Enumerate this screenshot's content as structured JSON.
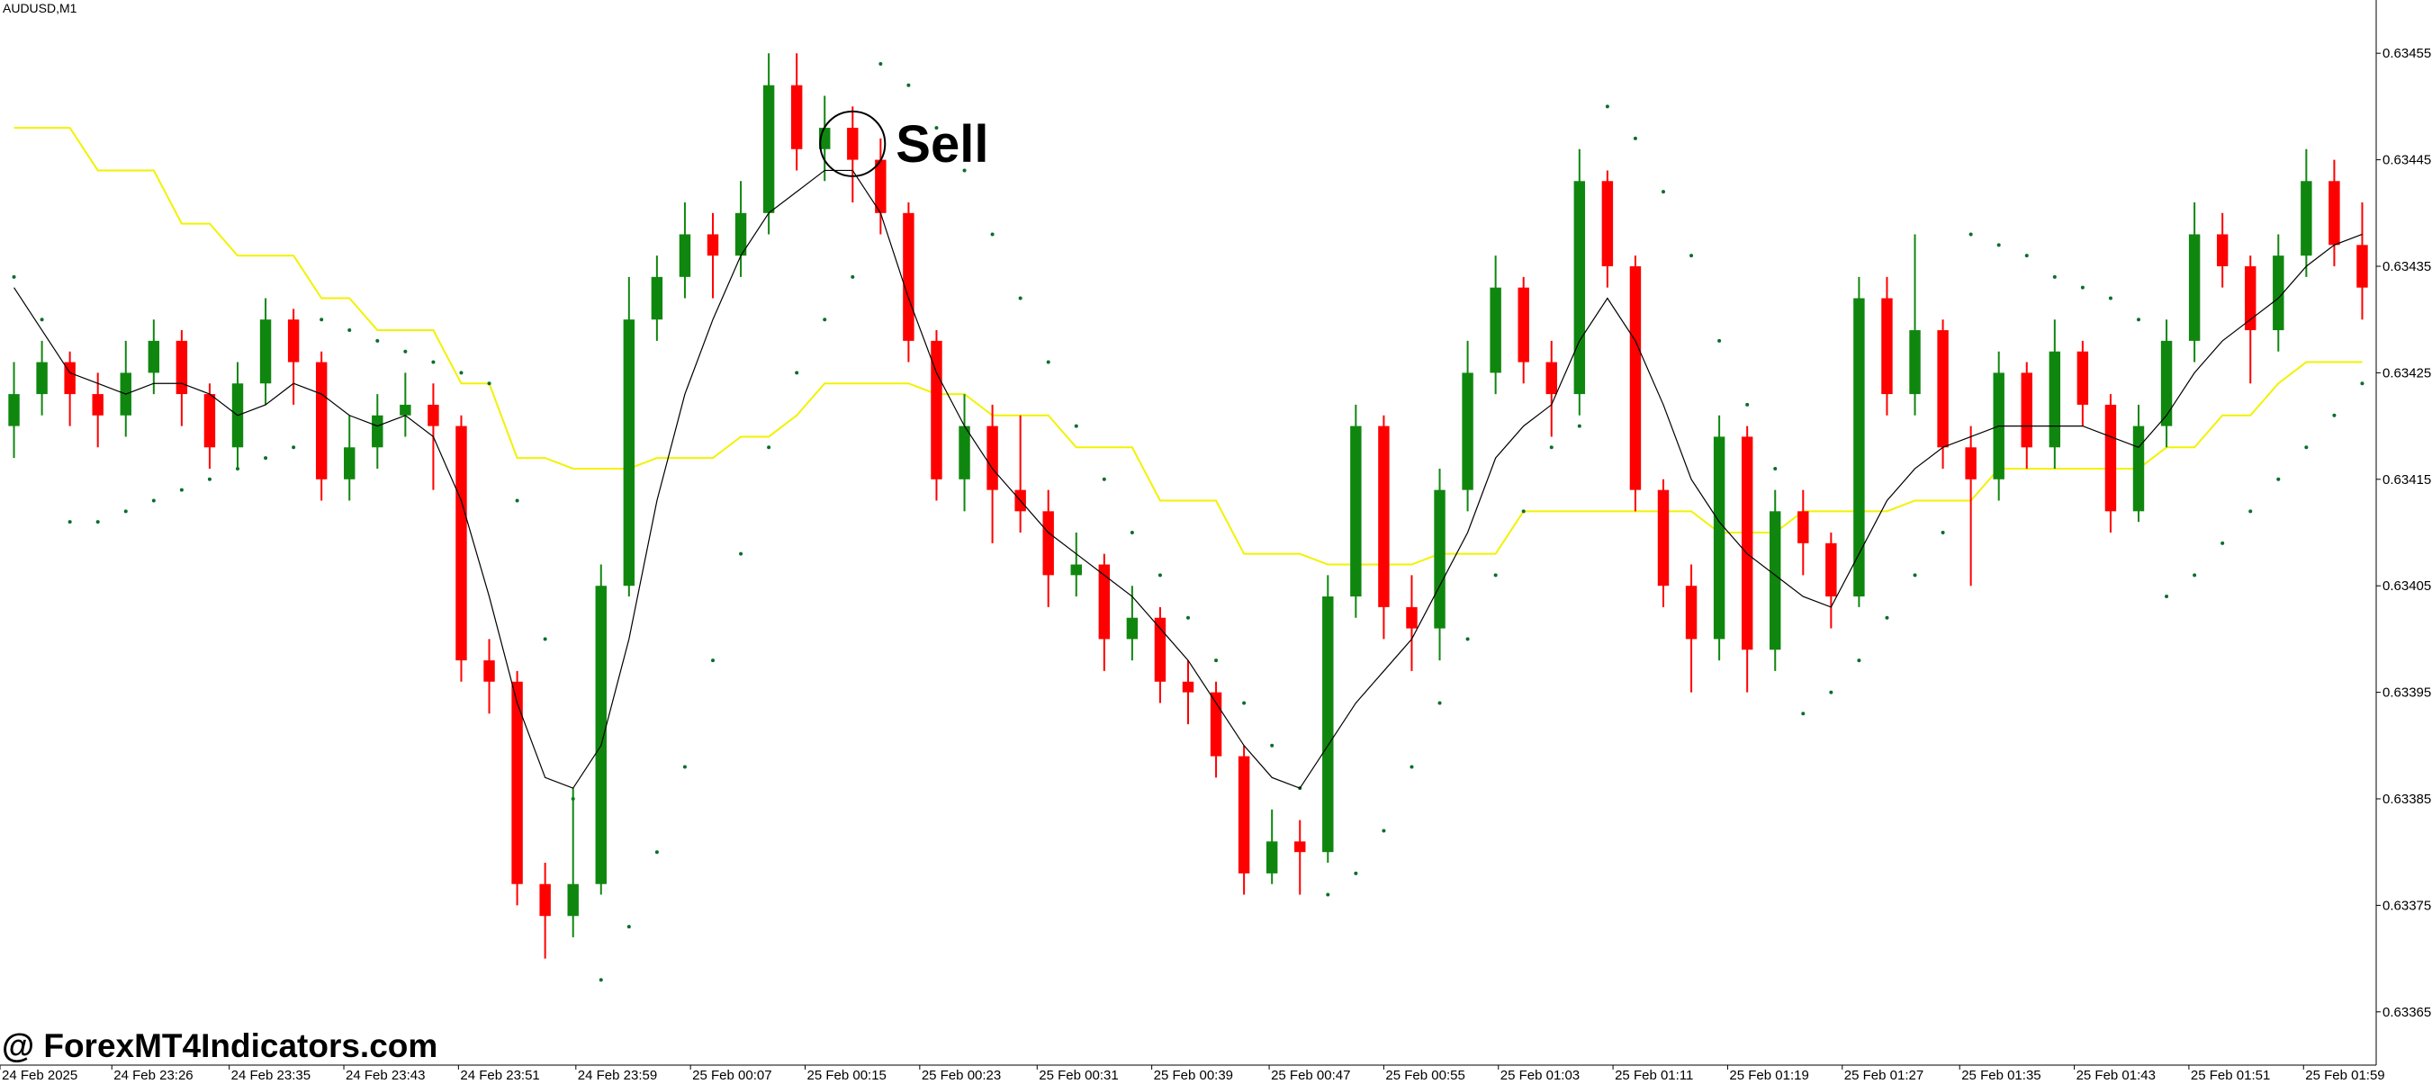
{
  "chart_data": {
    "type": "candlestick",
    "symbol": "AUDUSD,M1",
    "watermark": "@ ForexMT4Indicators.com",
    "up_color": "#0f870f",
    "down_color": "#ff0000",
    "ylim": [
      0.6336,
      0.6346
    ],
    "yticks": [
      0.63455,
      0.63445,
      0.63435,
      0.63425,
      0.63415,
      0.63405,
      0.63395,
      0.63385,
      0.63375,
      0.63365
    ],
    "xticks": [
      {
        "value": -0.5,
        "label": "24 Feb 2025"
      },
      {
        "value": 3.5,
        "label": "24 Feb 23:26"
      },
      {
        "value": 7.7,
        "label": "24 Feb 23:35"
      },
      {
        "value": 11.8,
        "label": "24 Feb 23:43"
      },
      {
        "value": 15.9,
        "label": "24 Feb 23:51"
      },
      {
        "value": 20.1,
        "label": "24 Feb 23:59"
      },
      {
        "value": 24.2,
        "label": "25 Feb 00:07"
      },
      {
        "value": 28.3,
        "label": "25 Feb 00:15"
      },
      {
        "value": 32.4,
        "label": "25 Feb 00:23"
      },
      {
        "value": 36.6,
        "label": "25 Feb 00:31"
      },
      {
        "value": 40.7,
        "label": "25 Feb 00:39"
      },
      {
        "value": 44.9,
        "label": "25 Feb 00:47"
      },
      {
        "value": 49,
        "label": "25 Feb 00:55"
      },
      {
        "value": 53.1,
        "label": "25 Feb 01:03"
      },
      {
        "value": 57.2,
        "label": "25 Feb 01:11"
      },
      {
        "value": 61.3,
        "label": "25 Feb 01:19"
      },
      {
        "value": 65.4,
        "label": "25 Feb 01:27"
      },
      {
        "value": 69.6,
        "label": "25 Feb 01:35"
      },
      {
        "value": 73.7,
        "label": "25 Feb 01:43"
      },
      {
        "value": 77.8,
        "label": "25 Feb 01:51"
      },
      {
        "value": 81.9,
        "label": "25 Feb 01:59"
      }
    ],
    "candles": {
      "open": [
        0.6342,
        0.63423,
        0.63426,
        0.63423,
        0.63421,
        0.63425,
        0.63428,
        0.63423,
        0.63418,
        0.63424,
        0.6343,
        0.63426,
        0.63415,
        0.63418,
        0.63421,
        0.63422,
        0.6342,
        0.63398,
        0.63396,
        0.63377,
        0.63374,
        0.63377,
        0.63405,
        0.6343,
        0.63434,
        0.63438,
        0.63436,
        0.6344,
        0.63452,
        0.63446,
        0.63448,
        0.63445,
        0.6344,
        0.63428,
        0.63415,
        0.6342,
        0.63414,
        0.63412,
        0.63406,
        0.63407,
        0.634,
        0.63402,
        0.63396,
        0.63395,
        0.63389,
        0.63378,
        0.63381,
        0.6338,
        0.63404,
        0.6342,
        0.63403,
        0.63401,
        0.63414,
        0.63425,
        0.63433,
        0.63426,
        0.63423,
        0.63443,
        0.63435,
        0.63414,
        0.63405,
        0.634,
        0.63419,
        0.63399,
        0.63412,
        0.63409,
        0.63404,
        0.63432,
        0.63423,
        0.63429,
        0.63418,
        0.63415,
        0.63425,
        0.63418,
        0.63427,
        0.63422,
        0.63412,
        0.6342,
        0.63428,
        0.63438,
        0.63435,
        0.63429,
        0.63436,
        0.63443,
        0.63437
      ],
      "high": [
        0.63426,
        0.63428,
        0.63427,
        0.63425,
        0.63428,
        0.6343,
        0.63429,
        0.63424,
        0.63426,
        0.63432,
        0.63431,
        0.63427,
        0.63421,
        0.63423,
        0.63425,
        0.63424,
        0.63421,
        0.634,
        0.63397,
        0.63379,
        0.63386,
        0.63407,
        0.63434,
        0.63436,
        0.63441,
        0.6344,
        0.63443,
        0.63455,
        0.63455,
        0.63451,
        0.6345,
        0.63447,
        0.63441,
        0.63429,
        0.63423,
        0.63422,
        0.63421,
        0.63414,
        0.6341,
        0.63408,
        0.63405,
        0.63403,
        0.63398,
        0.63396,
        0.6339,
        0.63384,
        0.63383,
        0.63406,
        0.63422,
        0.63421,
        0.63406,
        0.63416,
        0.63428,
        0.63436,
        0.63434,
        0.63428,
        0.63446,
        0.63444,
        0.63436,
        0.63415,
        0.63407,
        0.63421,
        0.6342,
        0.63414,
        0.63414,
        0.6341,
        0.63434,
        0.63434,
        0.63438,
        0.6343,
        0.6342,
        0.63427,
        0.63426,
        0.6343,
        0.63428,
        0.63423,
        0.63422,
        0.6343,
        0.63441,
        0.6344,
        0.63436,
        0.63438,
        0.63446,
        0.63445,
        0.63441
      ],
      "low": [
        0.63417,
        0.63421,
        0.6342,
        0.63418,
        0.63419,
        0.63423,
        0.6342,
        0.63416,
        0.63416,
        0.63422,
        0.63422,
        0.63413,
        0.63413,
        0.63416,
        0.63419,
        0.63414,
        0.63396,
        0.63393,
        0.63375,
        0.6337,
        0.63372,
        0.63376,
        0.63404,
        0.63428,
        0.63432,
        0.63432,
        0.63434,
        0.63438,
        0.63444,
        0.63443,
        0.63441,
        0.63438,
        0.63426,
        0.63413,
        0.63412,
        0.63409,
        0.6341,
        0.63403,
        0.63404,
        0.63397,
        0.63398,
        0.63394,
        0.63392,
        0.63387,
        0.63376,
        0.63377,
        0.63376,
        0.63379,
        0.63402,
        0.634,
        0.63397,
        0.63398,
        0.63412,
        0.63423,
        0.63424,
        0.63419,
        0.63421,
        0.63433,
        0.63412,
        0.63403,
        0.63395,
        0.63398,
        0.63395,
        0.63397,
        0.63406,
        0.63401,
        0.63403,
        0.63421,
        0.63421,
        0.63416,
        0.63405,
        0.63413,
        0.63416,
        0.63416,
        0.6342,
        0.6341,
        0.63411,
        0.63418,
        0.63426,
        0.63433,
        0.63424,
        0.63427,
        0.63434,
        0.63435,
        0.6343
      ],
      "close": [
        0.63423,
        0.63426,
        0.63423,
        0.63421,
        0.63425,
        0.63428,
        0.63423,
        0.63418,
        0.63424,
        0.6343,
        0.63426,
        0.63415,
        0.63418,
        0.63421,
        0.63422,
        0.6342,
        0.63398,
        0.63396,
        0.63377,
        0.63374,
        0.63377,
        0.63405,
        0.6343,
        0.63434,
        0.63438,
        0.63436,
        0.6344,
        0.63452,
        0.63446,
        0.63448,
        0.63445,
        0.6344,
        0.63428,
        0.63415,
        0.6342,
        0.63414,
        0.63412,
        0.63406,
        0.63407,
        0.634,
        0.63402,
        0.63396,
        0.63395,
        0.63389,
        0.63378,
        0.63381,
        0.6338,
        0.63404,
        0.6342,
        0.63403,
        0.63401,
        0.63414,
        0.63425,
        0.63433,
        0.63426,
        0.63423,
        0.63443,
        0.63435,
        0.63414,
        0.63405,
        0.634,
        0.63419,
        0.63399,
        0.63412,
        0.63409,
        0.63404,
        0.63432,
        0.63423,
        0.63429,
        0.63418,
        0.63415,
        0.63425,
        0.63418,
        0.63427,
        0.63422,
        0.63412,
        0.6342,
        0.63428,
        0.63438,
        0.63435,
        0.63429,
        0.63436,
        0.63443,
        0.63437,
        0.63433
      ]
    },
    "moving_average": {
      "color": "#000000",
      "values": [
        0.63433,
        0.63429,
        0.63425,
        0.63424,
        0.63423,
        0.63424,
        0.63424,
        0.63423,
        0.63421,
        0.63422,
        0.63424,
        0.63423,
        0.63421,
        0.6342,
        0.63421,
        0.63419,
        0.63413,
        0.63404,
        0.63394,
        0.63387,
        0.63386,
        0.6339,
        0.634,
        0.63413,
        0.63423,
        0.6343,
        0.63436,
        0.6344,
        0.63442,
        0.63444,
        0.63444,
        0.6344,
        0.63432,
        0.63425,
        0.6342,
        0.63416,
        0.63413,
        0.6341,
        0.63408,
        0.63406,
        0.63404,
        0.63401,
        0.63398,
        0.63394,
        0.6339,
        0.63387,
        0.63386,
        0.6339,
        0.63394,
        0.63397,
        0.634,
        0.63405,
        0.6341,
        0.63417,
        0.6342,
        0.63422,
        0.63428,
        0.63432,
        0.63428,
        0.63422,
        0.63415,
        0.63411,
        0.63408,
        0.63406,
        0.63404,
        0.63403,
        0.63408,
        0.63413,
        0.63416,
        0.63418,
        0.63419,
        0.6342,
        0.6342,
        0.6342,
        0.6342,
        0.63419,
        0.63418,
        0.63421,
        0.63425,
        0.63428,
        0.6343,
        0.63432,
        0.63435,
        0.63437,
        0.63438
      ]
    },
    "trend_line": {
      "color": "#f2f200",
      "values": [
        0.63448,
        0.63448,
        0.63448,
        0.63444,
        0.63444,
        0.63444,
        0.63439,
        0.63439,
        0.63436,
        0.63436,
        0.63436,
        0.63432,
        0.63432,
        0.63429,
        0.63429,
        0.63429,
        0.63424,
        0.63424,
        0.63417,
        0.63417,
        0.63416,
        0.63416,
        0.63416,
        0.63417,
        0.63417,
        0.63417,
        0.63419,
        0.63419,
        0.63421,
        0.63424,
        0.63424,
        0.63424,
        0.63424,
        0.63423,
        0.63423,
        0.63421,
        0.63421,
        0.63421,
        0.63418,
        0.63418,
        0.63418,
        0.63413,
        0.63413,
        0.63413,
        0.63408,
        0.63408,
        0.63408,
        0.63407,
        0.63407,
        0.63407,
        0.63407,
        0.63408,
        0.63408,
        0.63408,
        0.63412,
        0.63412,
        0.63412,
        0.63412,
        0.63412,
        0.63412,
        0.63412,
        0.6341,
        0.6341,
        0.6341,
        0.63412,
        0.63412,
        0.63412,
        0.63412,
        0.63413,
        0.63413,
        0.63413,
        0.63416,
        0.63416,
        0.63416,
        0.63416,
        0.63416,
        0.63416,
        0.63418,
        0.63418,
        0.63421,
        0.63421,
        0.63424,
        0.63426,
        0.63426,
        0.63426
      ]
    },
    "sar": {
      "color": "#0a6e2a",
      "values": [
        0.63434,
        0.6343,
        0.63411,
        0.63411,
        0.63412,
        0.63413,
        0.63414,
        0.63415,
        0.63416,
        0.63417,
        0.63418,
        0.6343,
        0.63429,
        0.63428,
        0.63427,
        0.63426,
        0.63425,
        0.63424,
        0.63413,
        0.634,
        0.63385,
        0.63368,
        0.63373,
        0.6338,
        0.63388,
        0.63398,
        0.63408,
        0.63418,
        0.63425,
        0.6343,
        0.63434,
        0.63454,
        0.63452,
        0.63448,
        0.63444,
        0.63438,
        0.63432,
        0.63426,
        0.6342,
        0.63415,
        0.6341,
        0.63406,
        0.63402,
        0.63398,
        0.63394,
        0.6339,
        0.63386,
        0.63376,
        0.63378,
        0.63382,
        0.63388,
        0.63394,
        0.634,
        0.63406,
        0.63412,
        0.63418,
        0.6342,
        0.6345,
        0.63447,
        0.63442,
        0.63436,
        0.63428,
        0.63422,
        0.63416,
        0.63393,
        0.63395,
        0.63398,
        0.63402,
        0.63406,
        0.6341,
        0.63438,
        0.63437,
        0.63436,
        0.63434,
        0.63433,
        0.63432,
        0.6343,
        0.63404,
        0.63406,
        0.63409,
        0.63412,
        0.63415,
        0.63418,
        0.63421,
        0.63424
      ]
    },
    "signal": {
      "text": "Sell",
      "candle": 30
    }
  }
}
